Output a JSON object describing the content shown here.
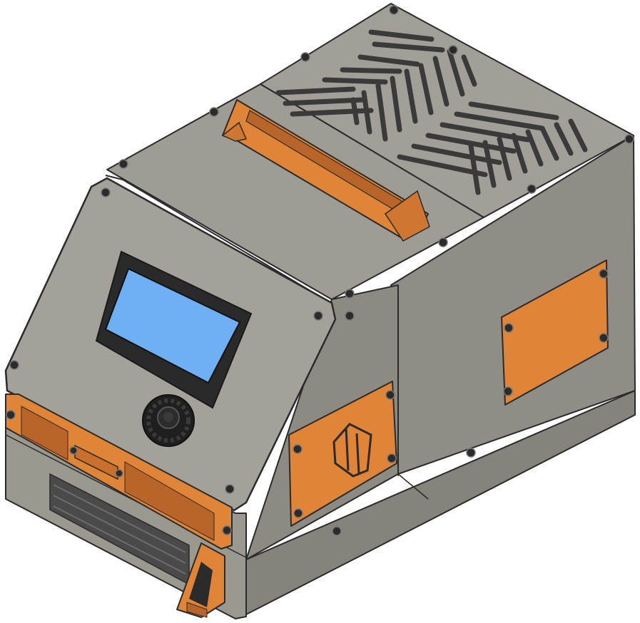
{
  "scene": {
    "subject": "enclosure-3d-render",
    "colors": {
      "background": "#ffffff",
      "body_light": "#9e9c94",
      "body_mid": "#8f8d85",
      "body_dark": "#7c7a73",
      "front_panel": "#a09e96",
      "orange": "#e08437",
      "orange_dark": "#b9652a",
      "orange_light": "#ef9a4e",
      "screen": "#6fb0f5",
      "screen_bezel": "#1f1f1f",
      "knob": "#222222",
      "slot": "#3a3a3a",
      "outline": "#2b2b2b"
    }
  }
}
